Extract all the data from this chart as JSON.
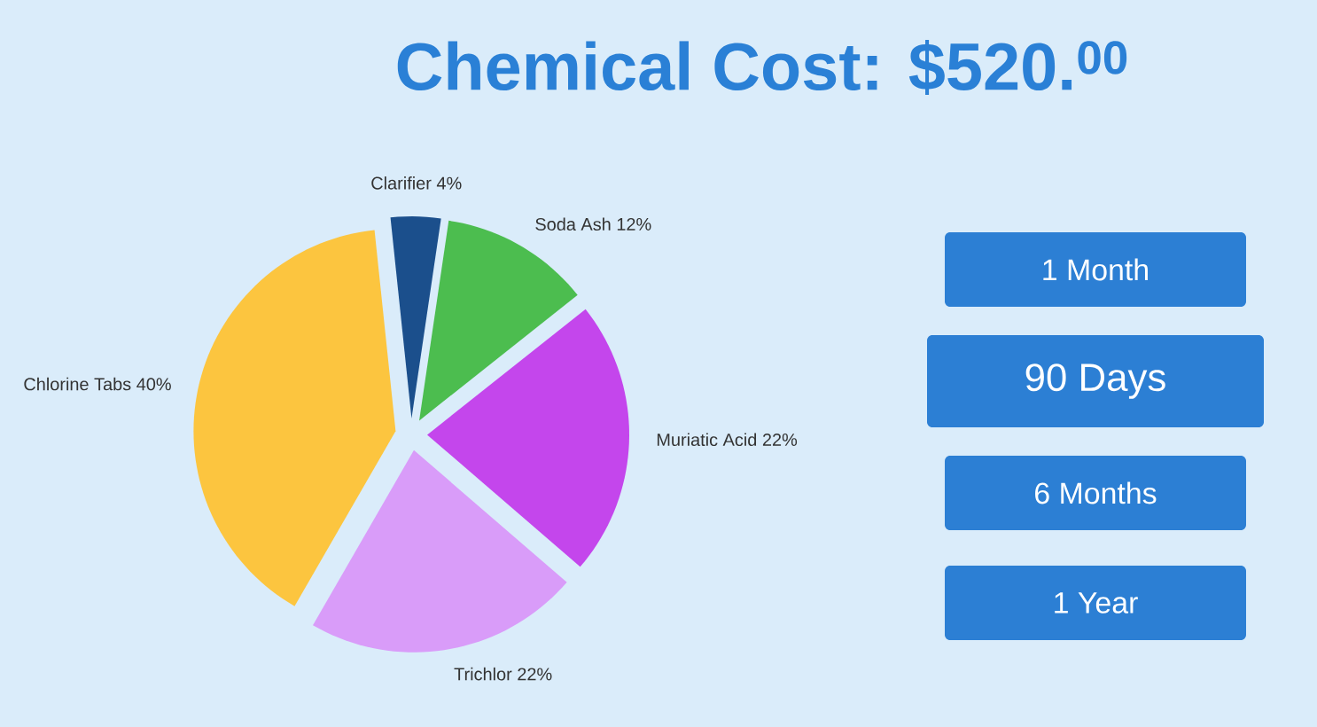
{
  "chart_data": {
    "type": "pie",
    "title": "Chemical Cost: $520.$^{00}$",
    "categories": [
      "Clarifier",
      "Soda Ash",
      "Muriatic Acid",
      "Trichlor",
      "Chlorine Tabs"
    ],
    "values": [
      4,
      12,
      22,
      22,
      40
    ],
    "value_labels": [
      "4%",
      "12%",
      "22%",
      "22%",
      "40%"
    ],
    "colors": [
      "#1b4f8c",
      "#4cbd4f",
      "#c446ec",
      "#d99cf9",
      "#fcc53f"
    ],
    "annotations": [
      "1 Month",
      "90 Days",
      "6 Months",
      "1 Year"
    ]
  }
}
